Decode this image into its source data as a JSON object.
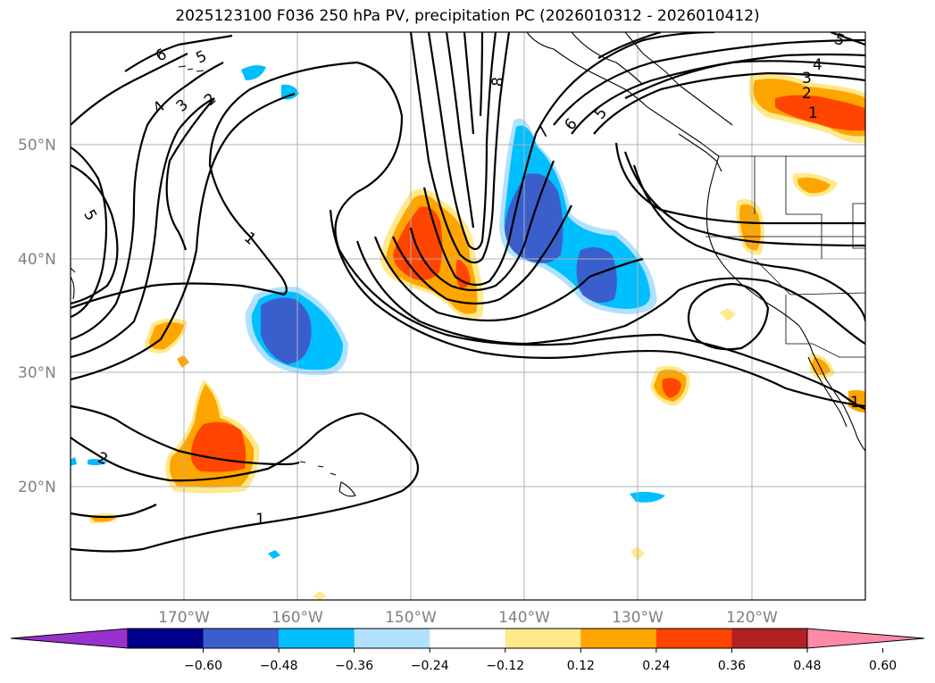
{
  "title": "2025123100 F036 250 hPa PV, precipitation PC (2026010312 - 2026010412)",
  "map": {
    "lat_labels": [
      "50°N",
      "40°N",
      "30°N",
      "20°N"
    ],
    "lon_labels": [
      "170°W",
      "160°W",
      "150°W",
      "140°W",
      "130°W",
      "120°W"
    ],
    "contour_labels": [
      "1",
      "1",
      "1",
      "2",
      "2",
      "2",
      "3",
      "3",
      "4",
      "4",
      "5",
      "5",
      "5",
      "6",
      "6",
      "7",
      "8",
      "5",
      "1"
    ]
  },
  "colorbar": {
    "ticks": [
      "−0.60",
      "−0.48",
      "−0.36",
      "−0.24",
      "−0.12",
      "0.12",
      "0.24",
      "0.36",
      "0.48",
      "0.60"
    ],
    "colors": [
      "#9932cc",
      "#00008b",
      "#3a5fcd",
      "#00bfff",
      "#b0e2ff",
      "#ffffff",
      "#ffe98a",
      "#ffa500",
      "#ff4500",
      "#b22222",
      "#ff89a8"
    ]
  },
  "legend_colors": {
    "extreme_neg": "#9932cc",
    "neg_048": "#00008b",
    "neg_036": "#3a5fcd",
    "neg_024": "#00bfff",
    "neg_012": "#b0e2ff",
    "pos_012": "#ffe98a",
    "pos_024": "#ffa500",
    "pos_036": "#ff4500",
    "pos_048": "#b22222",
    "extreme_pos": "#ff89a8"
  }
}
